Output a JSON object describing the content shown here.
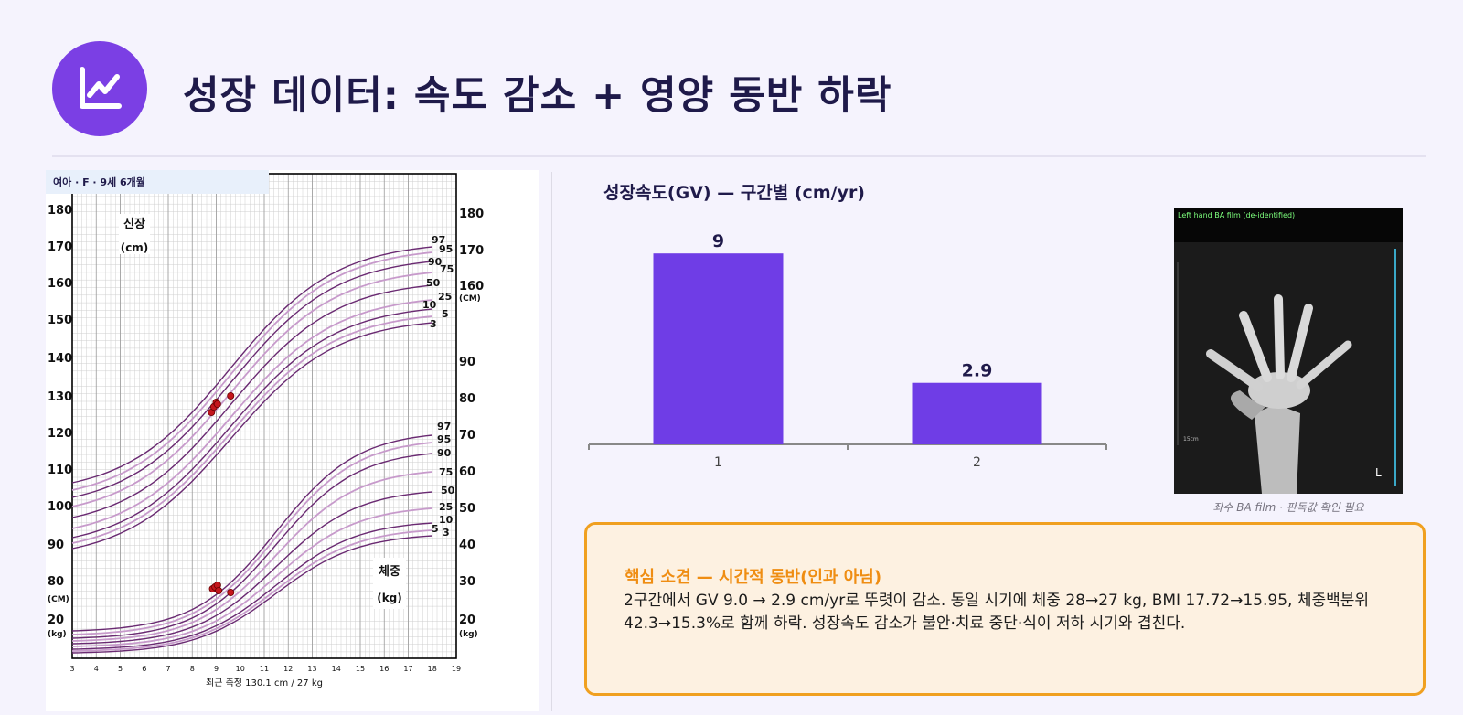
{
  "header": {
    "title": "성장 데이터: 속도 감소 + 영양 동반 하락",
    "icon": "line-chart-icon"
  },
  "growth_chart": {
    "badge": "여아 · F · 9세 6개월",
    "height_label": "신장",
    "height_unit": "(cm)",
    "weight_label": "체중",
    "weight_unit": "(kg)",
    "footer": "최근 측정 130.1 cm / 27 kg",
    "left_ticks": [
      "180",
      "170",
      "160",
      "150",
      "140",
      "130",
      "120",
      "110",
      "100",
      "90",
      "80"
    ],
    "right_ticks": [
      "180",
      "170",
      "160",
      "90",
      "80",
      "70",
      "60",
      "50",
      "40",
      "30"
    ],
    "left_cm_label": "(CM)",
    "right_cm_label": "(CM)",
    "left_weight_ticks": [
      "20"
    ],
    "right_weight_ticks": [
      "20"
    ],
    "kg_label": "(kg)",
    "x_ticks": [
      "3",
      "4",
      "5",
      "6",
      "7",
      "8",
      "9",
      "10",
      "11",
      "12",
      "13",
      "14",
      "15",
      "16",
      "17",
      "18",
      "19"
    ],
    "height_percentile_labels": [
      "97",
      "95",
      "90",
      "75",
      "50",
      "25",
      "10",
      "5",
      "3"
    ],
    "weight_percentile_labels": [
      "97",
      "95",
      "90",
      "75",
      "50",
      "25",
      "10",
      "5",
      "3"
    ]
  },
  "gv_chart_title": "성장속도(GV) — 구간별 (cm/yr)",
  "chart_data": {
    "type": "bar",
    "categories": [
      "1",
      "2"
    ],
    "values": [
      9,
      2.9
    ],
    "value_labels": [
      "9",
      "2.9"
    ],
    "ylim": [
      0,
      10
    ],
    "bar_color": "#6f3de6",
    "grid": false
  },
  "xray": {
    "label": "Left hand BA film (de-identified)",
    "scale": "15cm",
    "side_marker": "L",
    "caption": "좌수 BA film · 판독값 확인 필요"
  },
  "finding": {
    "title": "핵심 소견 — 시간적 동반(인과 아님)",
    "body": "2구간에서 GV 9.0 → 2.9 cm/yr로 뚜렷이 감소. 동일 시기에 체중 28→27 kg, BMI 17.72→15.95, 체중백분위 42.3→15.3%로 함께 하락. 성장속도 감소가 불안·치료 중단·식이 저하 시기와 겹친다."
  },
  "colors": {
    "accent": "#7b3fe4",
    "title": "#1f1a4a",
    "finding_border": "#f0a020",
    "finding_title": "#ef8d12",
    "percentile_line": "#6a2a72"
  }
}
